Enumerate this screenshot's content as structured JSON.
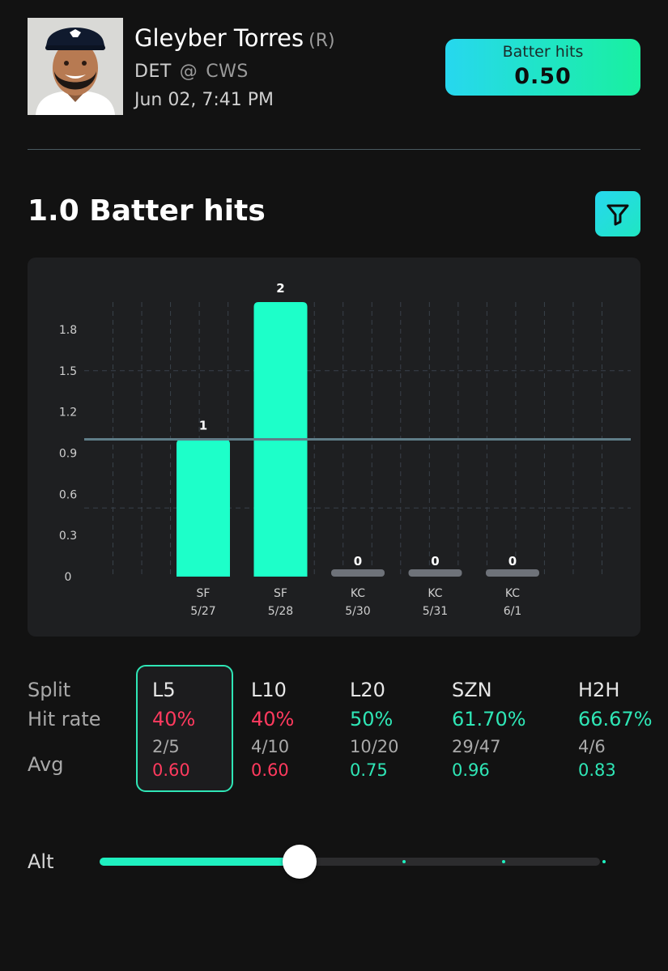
{
  "header": {
    "player_name": "Gleyber Torres",
    "handedness": "(R)",
    "team": "DET",
    "at_symbol": "@",
    "opponent": "CWS",
    "game_time": "Jun 02, 7:41 PM",
    "line_badge": {
      "label": "Batter hits",
      "value": "0.50"
    }
  },
  "section": {
    "title": "1.0 Batter hits",
    "filter_icon": "filter-funnel-icon"
  },
  "chart_data": {
    "type": "bar",
    "categories": [
      "5/27",
      "5/28",
      "5/30",
      "5/31",
      "6/1"
    ],
    "opponents": [
      "SF",
      "SF",
      "KC",
      "KC",
      "KC"
    ],
    "values": [
      1,
      2,
      0,
      0,
      0
    ],
    "value_labels": [
      "1",
      "2",
      "0",
      "0",
      "0"
    ],
    "yticks": [
      "0",
      "0.3",
      "0.6",
      "0.9",
      "1.2",
      "1.5",
      "1.8"
    ],
    "ylim": [
      0,
      2
    ],
    "threshold": 1.0,
    "grid": true,
    "colors": {
      "hit": "#1dffc9",
      "miss": "#6e7279",
      "threshold": "#5f7d88"
    }
  },
  "splits": {
    "labels": {
      "split": "Split",
      "hit_rate": "Hit rate",
      "avg": "Avg"
    },
    "items": [
      {
        "name": "L5",
        "rate": "40%",
        "fraction": "2/5",
        "avg": "0.60",
        "status": "red",
        "selected": true
      },
      {
        "name": "L10",
        "rate": "40%",
        "fraction": "4/10",
        "avg": "0.60",
        "status": "red",
        "selected": false
      },
      {
        "name": "L20",
        "rate": "50%",
        "fraction": "10/20",
        "avg": "0.75",
        "status": "green",
        "selected": false
      },
      {
        "name": "SZN",
        "rate": "61.70%",
        "fraction": "29/47",
        "avg": "0.96",
        "status": "green",
        "selected": false
      },
      {
        "name": "H2H",
        "rate": "66.67%",
        "fraction": "4/6",
        "avg": "0.83",
        "status": "green",
        "selected": false
      }
    ]
  },
  "alt": {
    "label": "Alt",
    "stops": 6,
    "selected_index": 2
  }
}
